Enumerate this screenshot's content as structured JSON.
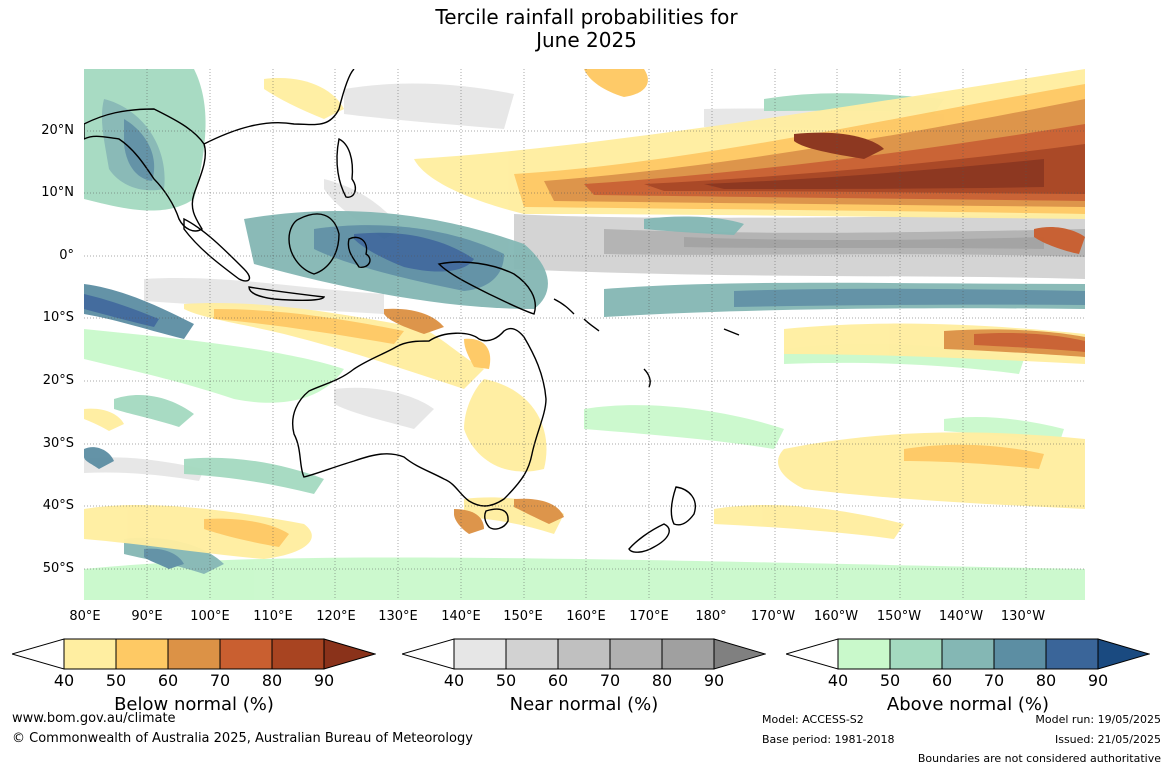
{
  "title": {
    "line1": "Tercile rainfall probabilities for",
    "line2": "June 2025"
  },
  "map": {
    "lon_labels": [
      "80°E",
      "90°E",
      "100°E",
      "110°E",
      "120°E",
      "130°E",
      "140°E",
      "150°E",
      "160°E",
      "170°E",
      "180°",
      "170°W",
      "160°W",
      "150°W",
      "140°W",
      "130°W"
    ],
    "lat_labels": [
      "20°N",
      "10°N",
      "0°",
      "10°S",
      "20°S",
      "30°S",
      "40°S",
      "50°S"
    ],
    "colors": {
      "below": [
        "#ffeea1",
        "#fec964",
        "#dc9246",
        "#c95f30",
        "#a84421",
        "#8a321a"
      ],
      "near": [
        "#e6e6e6",
        "#d2d2d2",
        "#c0c0c0",
        "#b0b0b0",
        "#a0a0a0",
        "#808080"
      ],
      "above": [
        "#c9f9cb",
        "#a4dac0",
        "#84b7b4",
        "#5c8ea3",
        "#3a6599",
        "#1a4a80"
      ]
    }
  },
  "legends": [
    {
      "title": "Below normal (%)",
      "ticks": [
        "40",
        "50",
        "60",
        "70",
        "80",
        "90"
      ]
    },
    {
      "title": "Near normal (%)",
      "ticks": [
        "40",
        "50",
        "60",
        "70",
        "80",
        "90"
      ]
    },
    {
      "title": "Above normal (%)",
      "ticks": [
        "40",
        "50",
        "60",
        "70",
        "80",
        "90"
      ]
    }
  ],
  "footer": {
    "url": "www.bom.gov.au/climate",
    "copyright": "© Commonwealth of Australia 2025, Australian Bureau of Meteorology",
    "model": "Model: ACCESS-S2",
    "base_period": "Base period: 1981-2018",
    "model_run": "Model run: 19/05/2025",
    "issued": "Issued: 21/05/2025",
    "disclaimer": "Boundaries are not considered authoritative"
  }
}
